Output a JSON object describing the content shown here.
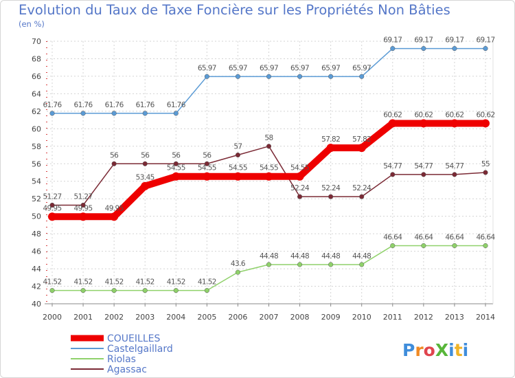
{
  "chart_data": {
    "type": "line",
    "title": "Evolution du Taux de Taxe Foncière sur les Propriétés Non Bâties",
    "ylabel": "(en %)",
    "xlabel": "",
    "x": [
      "2000",
      "2001",
      "2002",
      "2003",
      "2004",
      "2005",
      "2006",
      "2007",
      "2008",
      "2009",
      "2010",
      "2011",
      "2012",
      "2013",
      "2014"
    ],
    "ylim": [
      40,
      70
    ],
    "yticks": [
      40,
      42,
      44,
      46,
      48,
      50,
      52,
      54,
      56,
      58,
      60,
      62,
      64,
      66,
      68,
      70
    ],
    "grid": true,
    "legend_position": "bottom-left",
    "series": [
      {
        "name": "Castelgaillard",
        "color": "#5b9bd5",
        "values": [
          61.76,
          61.76,
          61.76,
          61.76,
          61.76,
          65.97,
          65.97,
          65.97,
          65.97,
          65.97,
          65.97,
          69.17,
          69.17,
          69.17,
          69.17
        ]
      },
      {
        "name": "Riolas",
        "color": "#8fd16a",
        "values": [
          41.52,
          41.52,
          41.52,
          41.52,
          41.52,
          41.52,
          43.6,
          44.48,
          44.48,
          44.48,
          44.48,
          46.64,
          46.64,
          46.64,
          46.64
        ]
      },
      {
        "name": "Agassac",
        "color": "#7b2a35",
        "values": [
          51.27,
          51.27,
          56,
          56,
          56,
          56,
          57,
          58,
          52.24,
          52.24,
          52.24,
          54.77,
          54.77,
          54.77,
          55
        ]
      },
      {
        "name": "COUEILLES",
        "color": "#ee0000",
        "values": [
          49.95,
          49.95,
          49.95,
          53.45,
          54.55,
          54.55,
          54.55,
          54.55,
          54.55,
          57.82,
          57.82,
          60.62,
          60.62,
          60.62,
          60.62
        ]
      }
    ],
    "legend": [
      "COUEILLES",
      "Castelgaillard",
      "Riolas",
      "Agassac"
    ]
  },
  "brand": {
    "text": "ProXiti"
  },
  "colors": {
    "title": "#5577c8",
    "grid": "#d3d3d3",
    "axis": "#888888"
  }
}
